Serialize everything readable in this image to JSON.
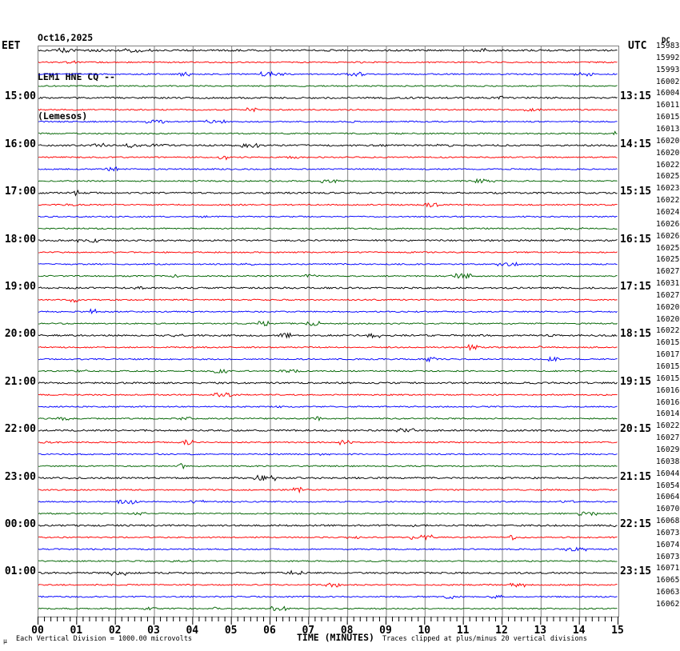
{
  "header": {
    "date": "Oct16,2025",
    "station": "LEM1 HNE CQ --",
    "location": "(Lemesos)"
  },
  "axes": {
    "left_title": "EET",
    "right_title": "UTC",
    "dc_title": "DC",
    "x_title": "TIME (MINUTES)",
    "x_tick_labels": [
      "00",
      "01",
      "02",
      "03",
      "04",
      "05",
      "06",
      "07",
      "08",
      "09",
      "10",
      "11",
      "12",
      "13",
      "14",
      "15"
    ]
  },
  "footer": {
    "micro_symbol": "μ",
    "scale_note": "Each Vertical Division = 1000.00 microvolts",
    "clip_note": "Traces clipped at plus/minus 20 vertical divisions"
  },
  "colors": {
    "background": "#ffffff",
    "text": "#000000",
    "grid": "#808080",
    "trace_cycle": [
      "#000000",
      "#ff0000",
      "#0000ff",
      "#006400"
    ]
  },
  "chart_data": {
    "type": "line",
    "title": "LEM1 HNE CQ -- (Lemesos) helicorder Oct16,2025",
    "x_axis": {
      "label": "TIME (MINUTES)",
      "min": 0,
      "max": 15,
      "minor_ticks_per_minute": 6
    },
    "row_duration_minutes": 15,
    "rows_per_hour": 4,
    "trace_style": "flat background noise, ~1px amplitude, occasional tiny bursts",
    "rows": [
      {
        "eet": "",
        "utc": "",
        "dc": 15983
      },
      {
        "eet": "",
        "utc": "",
        "dc": 15992
      },
      {
        "eet": "",
        "utc": "",
        "dc": 15993
      },
      {
        "eet": "",
        "utc": "",
        "dc": 16002
      },
      {
        "eet": "15:00",
        "utc": "13:15",
        "dc": 16004
      },
      {
        "eet": "",
        "utc": "",
        "dc": 16011
      },
      {
        "eet": "",
        "utc": "",
        "dc": 16015
      },
      {
        "eet": "",
        "utc": "",
        "dc": 16013
      },
      {
        "eet": "16:00",
        "utc": "14:15",
        "dc": 16020
      },
      {
        "eet": "",
        "utc": "",
        "dc": 16020
      },
      {
        "eet": "",
        "utc": "",
        "dc": 16022
      },
      {
        "eet": "",
        "utc": "",
        "dc": 16025
      },
      {
        "eet": "17:00",
        "utc": "15:15",
        "dc": 16023
      },
      {
        "eet": "",
        "utc": "",
        "dc": 16022
      },
      {
        "eet": "",
        "utc": "",
        "dc": 16024
      },
      {
        "eet": "",
        "utc": "",
        "dc": 16026
      },
      {
        "eet": "18:00",
        "utc": "16:15",
        "dc": 16026
      },
      {
        "eet": "",
        "utc": "",
        "dc": 16025
      },
      {
        "eet": "",
        "utc": "",
        "dc": 16025
      },
      {
        "eet": "",
        "utc": "",
        "dc": 16027
      },
      {
        "eet": "19:00",
        "utc": "17:15",
        "dc": 16031
      },
      {
        "eet": "",
        "utc": "",
        "dc": 16027
      },
      {
        "eet": "",
        "utc": "",
        "dc": 16020
      },
      {
        "eet": "",
        "utc": "",
        "dc": 16020
      },
      {
        "eet": "20:00",
        "utc": "18:15",
        "dc": 16022
      },
      {
        "eet": "",
        "utc": "",
        "dc": 16015
      },
      {
        "eet": "",
        "utc": "",
        "dc": 16017
      },
      {
        "eet": "",
        "utc": "",
        "dc": 16015
      },
      {
        "eet": "21:00",
        "utc": "19:15",
        "dc": 16015
      },
      {
        "eet": "",
        "utc": "",
        "dc": 16016
      },
      {
        "eet": "",
        "utc": "",
        "dc": 16016
      },
      {
        "eet": "",
        "utc": "",
        "dc": 16014
      },
      {
        "eet": "22:00",
        "utc": "20:15",
        "dc": 16022
      },
      {
        "eet": "",
        "utc": "",
        "dc": 16027
      },
      {
        "eet": "",
        "utc": "",
        "dc": 16029
      },
      {
        "eet": "",
        "utc": "",
        "dc": 16038
      },
      {
        "eet": "23:00",
        "utc": "21:15",
        "dc": 16044
      },
      {
        "eet": "",
        "utc": "",
        "dc": 16054
      },
      {
        "eet": "",
        "utc": "",
        "dc": 16064
      },
      {
        "eet": "",
        "utc": "",
        "dc": 16070
      },
      {
        "eet": "00:00",
        "utc": "22:15",
        "dc": 16068
      },
      {
        "eet": "",
        "utc": "",
        "dc": 16073
      },
      {
        "eet": "",
        "utc": "",
        "dc": 16074
      },
      {
        "eet": "",
        "utc": "",
        "dc": 16073
      },
      {
        "eet": "01:00",
        "utc": "23:15",
        "dc": 16071
      },
      {
        "eet": "",
        "utc": "",
        "dc": 16065
      },
      {
        "eet": "",
        "utc": "",
        "dc": 16063
      },
      {
        "eet": "",
        "utc": "",
        "dc": 16062
      }
    ]
  }
}
